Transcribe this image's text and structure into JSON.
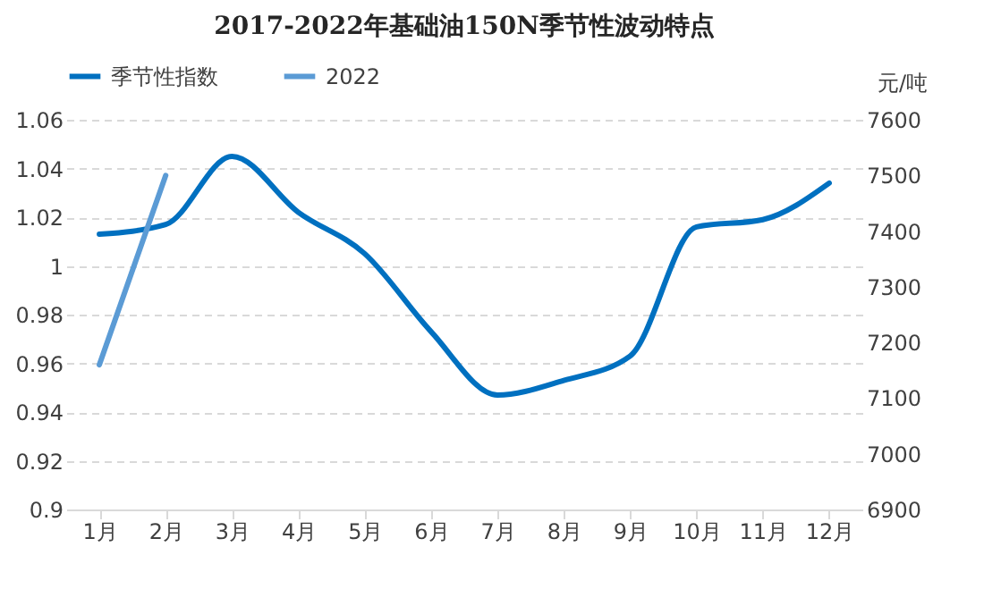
{
  "chart_data": {
    "type": "line",
    "title": "2017-2022年基础油150N季节性波动特点",
    "y2label": "元/吨",
    "categories": [
      "1月",
      "2月",
      "3月",
      "4月",
      "5月",
      "6月",
      "7月",
      "8月",
      "9月",
      "10月",
      "11月",
      "12月"
    ],
    "series": [
      {
        "name": "季节性指数",
        "color": "#0070c0",
        "values": [
          1.013,
          1.017,
          1.045,
          1.022,
          1.005,
          0.973,
          0.947,
          0.953,
          0.963,
          1.016,
          1.019,
          1.034
        ]
      },
      {
        "name": "2022",
        "color": "#5b9bd5",
        "axis": "y2",
        "values": [
          7160,
          7500,
          null,
          null,
          null,
          null,
          null,
          null,
          null,
          null,
          null,
          null
        ]
      }
    ],
    "ylim": [
      0.9,
      1.06
    ],
    "yticks": [
      0.9,
      0.92,
      0.94,
      0.96,
      0.98,
      1,
      1.02,
      1.04,
      1.06
    ],
    "y2lim": [
      6900,
      7600
    ],
    "y2ticks": [
      6900,
      7000,
      7100,
      7200,
      7300,
      7400,
      7500,
      7600
    ],
    "grid": "y",
    "legend": "top",
    "line_style": "solid",
    "marker": "none"
  }
}
